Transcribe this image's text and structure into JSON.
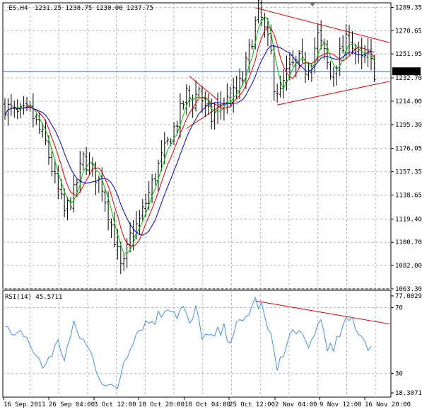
{
  "header": {
    "symbol": "_ES,H4",
    "ohlc": "1231.25 1238.75 1230.00 1237.75"
  },
  "colors": {
    "background": "#ffffff",
    "grid": "#b4b4b4",
    "candle": "#000000",
    "ma_fast": "#00c000",
    "ma_mid": "#e00000",
    "ma_slow": "#0000c0",
    "trendline": "#e00000",
    "rsi": "#4a8fe0",
    "price_marker_bg": "#000000",
    "price_marker_fg": "#ffffff"
  },
  "chart_data": [
    {
      "type": "candlestick",
      "title": "_ES,H4",
      "price_axis": {
        "min": 1063.3,
        "max": 1293.0,
        "ticks": [
          "1289.35",
          "1270.65",
          "1251.95",
          "1232.70",
          "1214.00",
          "1195.30",
          "1176.05",
          "1157.35",
          "1138.65",
          "1119.40",
          "1100.70",
          "1082.00",
          "1063.30"
        ]
      },
      "current_price": "1237.75",
      "time_axis": {
        "labels": [
          "16 Sep 2011",
          "26 Sep 04:00",
          "3 Oct 12:00",
          "10 Oct 20:00",
          "18 Oct 04:00",
          "25 Oct 12:00",
          "2 Nov 04:00",
          "9 Nov 12:00",
          "16 Nov 20:00"
        ]
      },
      "price_path": [
        [
          0,
          1210
        ],
        [
          4,
          1203
        ],
        [
          8,
          1206
        ],
        [
          10,
          1196
        ],
        [
          13,
          1180
        ],
        [
          16,
          1150
        ],
        [
          19,
          1125
        ],
        [
          22,
          1140
        ],
        [
          25,
          1168
        ],
        [
          28,
          1158
        ],
        [
          31,
          1146
        ],
        [
          33,
          1125
        ],
        [
          35,
          1104
        ],
        [
          37,
          1080
        ],
        [
          38,
          1082
        ],
        [
          40,
          1105
        ],
        [
          43,
          1118
        ],
        [
          46,
          1140
        ],
        [
          49,
          1162
        ],
        [
          52,
          1180
        ],
        [
          55,
          1198
        ],
        [
          58,
          1220
        ],
        [
          60,
          1213
        ],
        [
          62,
          1225
        ],
        [
          64,
          1207
        ],
        [
          66,
          1200
        ],
        [
          68,
          1208
        ],
        [
          70,
          1214
        ],
        [
          72,
          1216
        ],
        [
          74,
          1222
        ],
        [
          76,
          1232
        ],
        [
          78,
          1254
        ],
        [
          80,
          1276
        ],
        [
          81,
          1289
        ],
        [
          83,
          1270
        ],
        [
          85,
          1252
        ],
        [
          86,
          1228
        ],
        [
          88,
          1220
        ],
        [
          90,
          1236
        ],
        [
          92,
          1242
        ],
        [
          94,
          1246
        ],
        [
          96,
          1240
        ],
        [
          98,
          1248
        ],
        [
          100,
          1266
        ],
        [
          102,
          1252
        ],
        [
          104,
          1234
        ],
        [
          106,
          1246
        ],
        [
          108,
          1256
        ],
        [
          110,
          1266
        ],
        [
          112,
          1254
        ],
        [
          114,
          1246
        ],
        [
          116,
          1250
        ],
        [
          118,
          1238
        ]
      ],
      "overlays": [
        {
          "name": "ma_fast",
          "smoothing": 3
        },
        {
          "name": "ma_mid",
          "smoothing": 6
        },
        {
          "name": "ma_slow",
          "smoothing": 11
        }
      ],
      "trendlines": [
        {
          "from": [
            59,
            1234
          ],
          "to": [
            68,
            1215
          ]
        },
        {
          "from": [
            58,
            1192
          ],
          "to": [
            70,
            1212
          ]
        },
        {
          "from": [
            80,
            1289
          ],
          "to": [
            123,
            1261
          ]
        },
        {
          "from": [
            87,
            1211
          ],
          "to": [
            123,
            1230
          ]
        }
      ]
    },
    {
      "type": "line",
      "title": "RSI(14) 45.5711",
      "axis": {
        "min": 18.3071,
        "max": 77.0029,
        "ticks": [
          "77.0029",
          "70",
          "30",
          "18.3071"
        ]
      },
      "rsi_path": [
        [
          0,
          58
        ],
        [
          3,
          50
        ],
        [
          6,
          55
        ],
        [
          9,
          44
        ],
        [
          12,
          33
        ],
        [
          14,
          40
        ],
        [
          17,
          48
        ],
        [
          19,
          40
        ],
        [
          22,
          58
        ],
        [
          25,
          50
        ],
        [
          28,
          40
        ],
        [
          30,
          30
        ],
        [
          32,
          24
        ],
        [
          34,
          20
        ],
        [
          36,
          22
        ],
        [
          38,
          38
        ],
        [
          41,
          52
        ],
        [
          44,
          60
        ],
        [
          47,
          62
        ],
        [
          50,
          66
        ],
        [
          52,
          72
        ],
        [
          55,
          66
        ],
        [
          57,
          70
        ],
        [
          59,
          58
        ],
        [
          61,
          68
        ],
        [
          63,
          54
        ],
        [
          66,
          50
        ],
        [
          68,
          54
        ],
        [
          70,
          56
        ],
        [
          72,
          52
        ],
        [
          74,
          58
        ],
        [
          76,
          60
        ],
        [
          78,
          68
        ],
        [
          80,
          74
        ],
        [
          82,
          70
        ],
        [
          84,
          56
        ],
        [
          86,
          45
        ],
        [
          87,
          36
        ],
        [
          89,
          40
        ],
        [
          91,
          52
        ],
        [
          93,
          58
        ],
        [
          95,
          50
        ],
        [
          97,
          44
        ],
        [
          99,
          56
        ],
        [
          101,
          62
        ],
        [
          103,
          48
        ],
        [
          105,
          42
        ],
        [
          107,
          54
        ],
        [
          109,
          60
        ],
        [
          111,
          63
        ],
        [
          113,
          56
        ],
        [
          115,
          50
        ],
        [
          117,
          46
        ]
      ],
      "trendline": {
        "from": [
          80,
          74
        ],
        "to": [
          123,
          60
        ]
      }
    }
  ]
}
